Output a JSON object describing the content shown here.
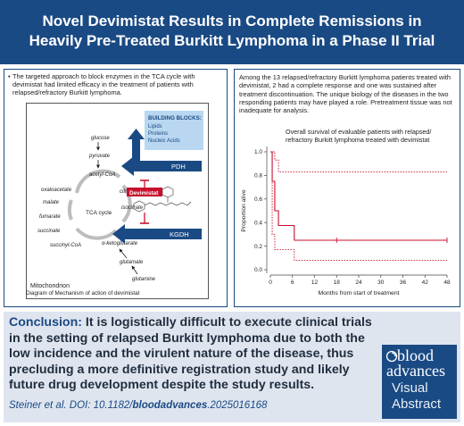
{
  "header": {
    "title_line1": "Novel Devimistat Results in Complete Remissions in",
    "title_line2": "Heavily Pre-Treated Burkitt Lymphoma in a Phase II Trial"
  },
  "left_panel": {
    "bullet": "•",
    "text": "The targeted approach to block enzymes in the TCA cycle with devimistat had limited efficacy in the treatment of patients with relapsed/refractory Burkitt lymphoma.",
    "caption": "Diagram of Mechanism of action of devimistat",
    "diagram": {
      "building_blocks_title": "BUILDING BLOCKS:",
      "building_blocks_items": [
        "Lipids",
        "Proteins",
        "Nucleic Acids"
      ],
      "pdh": "PDH",
      "kgdh": "KGDH",
      "drug": "Devimistat",
      "compartment": "Mitochondrion",
      "cycle": "TCA cycle",
      "metabolites": {
        "glucose": "glucose",
        "pyruvate": "pyruvate",
        "acetyl_coa": "acetyl-CoA",
        "oxaloacetate": "oxaloacetate",
        "citrate": "citrate",
        "malate": "malate",
        "isocitrate": "isocitrate",
        "fumarate": "fumarate",
        "succinate": "succinate",
        "succinyl_coa": "succinyl-CoA",
        "akg": "α-ketoglutarate",
        "glutamate": "glutamate",
        "glutamine": "glutamine"
      },
      "colors": {
        "blue": "#1a4a84",
        "red": "#c8102e",
        "card": "#b9d7f0"
      }
    }
  },
  "right_panel": {
    "text": "Among the 13 relapsed/refractory Burkitt lymphoma patients treated with devimistat, 2 had a complete response and one was sustained after treatment discontinuation. The unique biology of the diseases in the two responding patients may have played a role. Pretreatment tissue was not inadequate for analysis.",
    "chart_title": "Overall survival of evaluable patients with relapsed/ refractory Burkitt lymphoma treated with devimistat"
  },
  "chart_data": {
    "type": "line",
    "title": "Overall survival of evaluable patients with relapsed/ refractory Burkitt lymphoma treated with devimistat",
    "xlabel": "Months from start of treatment",
    "ylabel": "Proportion alive",
    "xlim": [
      0,
      48
    ],
    "ylim": [
      0,
      1
    ],
    "xticks": [
      0,
      6,
      12,
      18,
      24,
      30,
      36,
      42,
      48
    ],
    "yticks": [
      0.0,
      0.2,
      0.4,
      0.6,
      0.8,
      1.0
    ],
    "series": [
      {
        "role": "estimate",
        "style": "solid",
        "color": "#c8102e",
        "points": [
          [
            0,
            1.0
          ],
          [
            0.5,
            1.0
          ],
          [
            0.5,
            0.75
          ],
          [
            1.2,
            0.75
          ],
          [
            1.2,
            0.5
          ],
          [
            2.2,
            0.5
          ],
          [
            2.2,
            0.375
          ],
          [
            6.5,
            0.375
          ],
          [
            6.5,
            0.25
          ],
          [
            48,
            0.25
          ]
        ]
      },
      {
        "role": "upper-ci",
        "style": "dotted",
        "color": "#c8102e",
        "points": [
          [
            0,
            1.0
          ],
          [
            1.2,
            1.0
          ],
          [
            1.2,
            0.93
          ],
          [
            2.2,
            0.93
          ],
          [
            2.2,
            0.83
          ],
          [
            48,
            0.83
          ]
        ]
      },
      {
        "role": "lower-ci",
        "style": "dotted",
        "color": "#c8102e",
        "points": [
          [
            0,
            1.0
          ],
          [
            0.5,
            1.0
          ],
          [
            0.5,
            0.3
          ],
          [
            1.2,
            0.3
          ],
          [
            1.2,
            0.17
          ],
          [
            6.5,
            0.17
          ],
          [
            6.5,
            0.08
          ],
          [
            48,
            0.08
          ]
        ]
      }
    ],
    "censored": [
      [
        18,
        0.25
      ],
      [
        48,
        0.25
      ]
    ]
  },
  "conclusion": {
    "label": "Conclusion:",
    "text": " It is logistically difficult to execute clinical trials in the setting of relapsed Burkitt lymphoma due to both the low incidence and the virulent nature of the disease, thus precluding a more definitive registration study and likely future drug development despite the study results.",
    "citation_prefix": "Steiner et al. DOI: 10.1182/",
    "citation_bold": "bloodadvances",
    "citation_suffix": ".2025016168"
  },
  "logo": {
    "line1": "blood",
    "line2": "advances",
    "line3": "Visual",
    "line4": "Abstract"
  }
}
